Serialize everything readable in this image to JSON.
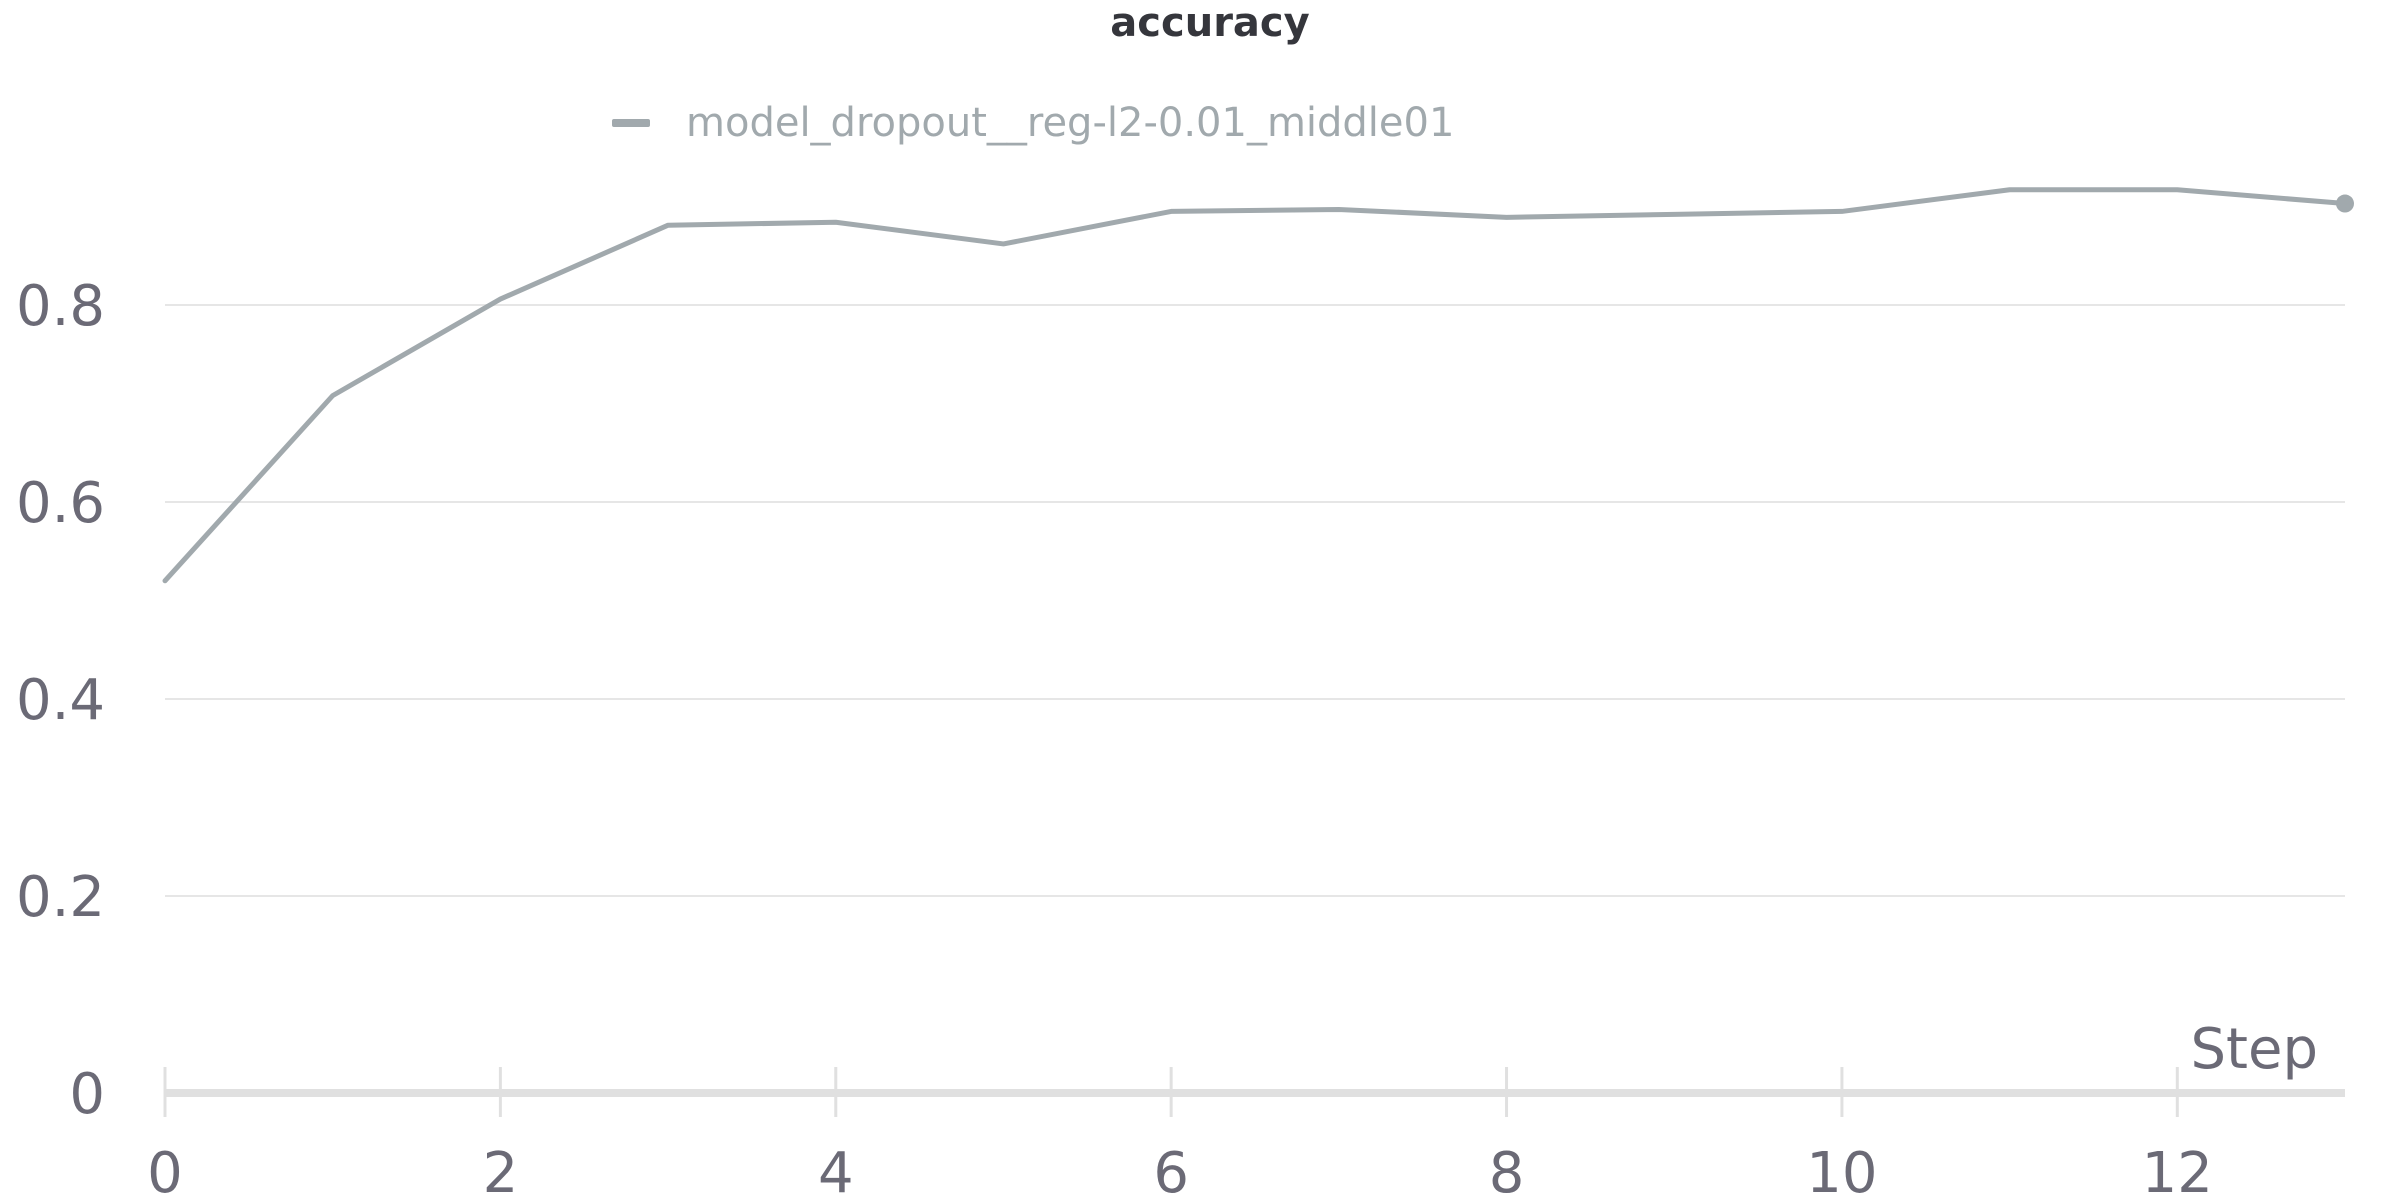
{
  "chart_data": {
    "type": "line",
    "title": "accuracy",
    "xlabel": "Step",
    "ylabel": "",
    "x": [
      0,
      1,
      2,
      3,
      4,
      5,
      6,
      7,
      8,
      9,
      10,
      11,
      12,
      13
    ],
    "series": [
      {
        "name": "model_dropout__reg-l2-0.01_middle01",
        "color": "#a1a9ad",
        "values": [
          0.52,
          0.708,
          0.806,
          0.881,
          0.884,
          0.862,
          0.895,
          0.897,
          0.889,
          0.892,
          0.895,
          0.917,
          0.917,
          0.903
        ]
      }
    ],
    "xlim": [
      0,
      13
    ],
    "ylim": [
      0,
      0.9
    ],
    "x_ticks": [
      0,
      2,
      4,
      6,
      8,
      10,
      12
    ],
    "y_ticks": [
      0,
      0.2,
      0.4,
      0.6,
      0.8
    ],
    "x_tick_labels": [
      "0",
      "2",
      "4",
      "6",
      "8",
      "10",
      "12"
    ],
    "y_tick_labels": [
      "0",
      "0.2",
      "0.4",
      "0.6",
      "0.8"
    ],
    "grid": true,
    "legend_position": "top-center",
    "end_marker": true
  },
  "colors": {
    "series": "#a1a9ad",
    "grid": "#e6e6e6",
    "axis": "#e0e0e0",
    "tick_text": "#6b6a76",
    "title_text": "#35363c",
    "legend_text": "#a1a9ad"
  }
}
